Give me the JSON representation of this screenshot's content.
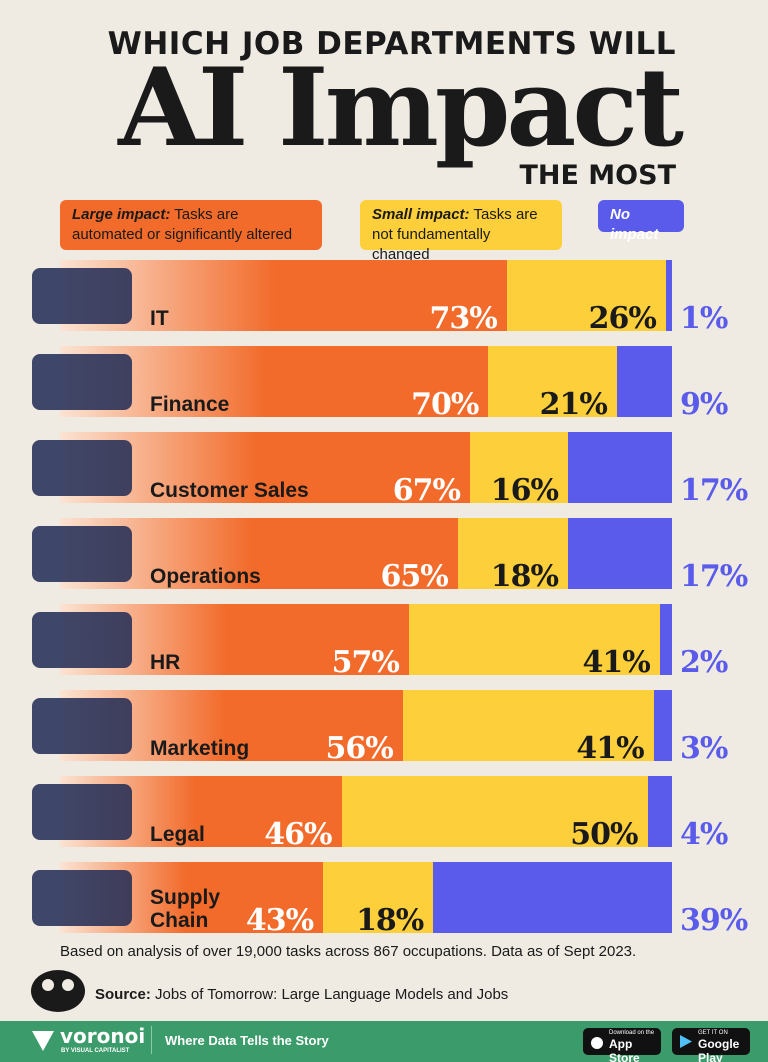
{
  "header": {
    "kicker": "WHICH JOB DEPARTMENTS WILL",
    "headline": "AI Impact",
    "tail": "THE MOST"
  },
  "chart_data": {
    "type": "bar",
    "orientation": "horizontal",
    "stacked": true,
    "categories": [
      "IT",
      "Finance",
      "Customer Sales",
      "Operations",
      "HR",
      "Marketing",
      "Legal",
      "Supply Chain"
    ],
    "xlim": [
      0,
      100
    ],
    "series": [
      {
        "name": "Large impact:",
        "description": "Tasks are automated or significantly altered",
        "color": "#f26b2b",
        "values": [
          73,
          70,
          67,
          65,
          57,
          56,
          46,
          43
        ],
        "value_labels": [
          "73%",
          "70%",
          "67%",
          "65%",
          "57%",
          "56%",
          "46%",
          "43%"
        ]
      },
      {
        "name": "Small impact:",
        "description": "Tasks are not fundamentally changed",
        "color": "#fdd03b",
        "values": [
          26,
          21,
          16,
          18,
          41,
          41,
          50,
          18
        ],
        "value_labels": [
          "26%",
          "21%",
          "16%",
          "18%",
          "41%",
          "41%",
          "50%",
          "18%"
        ]
      },
      {
        "name": "No impact",
        "color": "#5a5bea",
        "values": [
          1,
          9,
          17,
          17,
          2,
          3,
          4,
          39
        ],
        "value_labels": [
          "1%",
          "9%",
          "17%",
          "17%",
          "2%",
          "3%",
          "4%",
          "39%"
        ]
      }
    ],
    "note": "Based on analysis of over 19,000 tasks across 867 occupations. Data as of Sept 2023."
  },
  "source": {
    "label": "Source:",
    "text": "Jobs of Tomorrow: Large Language Models and Jobs"
  },
  "footer": {
    "brand": "voronoi",
    "brand_sub": "BY VISUAL CAPITALIST",
    "tagline": "Where Data Tells the Story",
    "appstore_small": "Download on the",
    "appstore": "App Store",
    "googleplay_small": "GET IT ON",
    "googleplay": "Google Play"
  }
}
